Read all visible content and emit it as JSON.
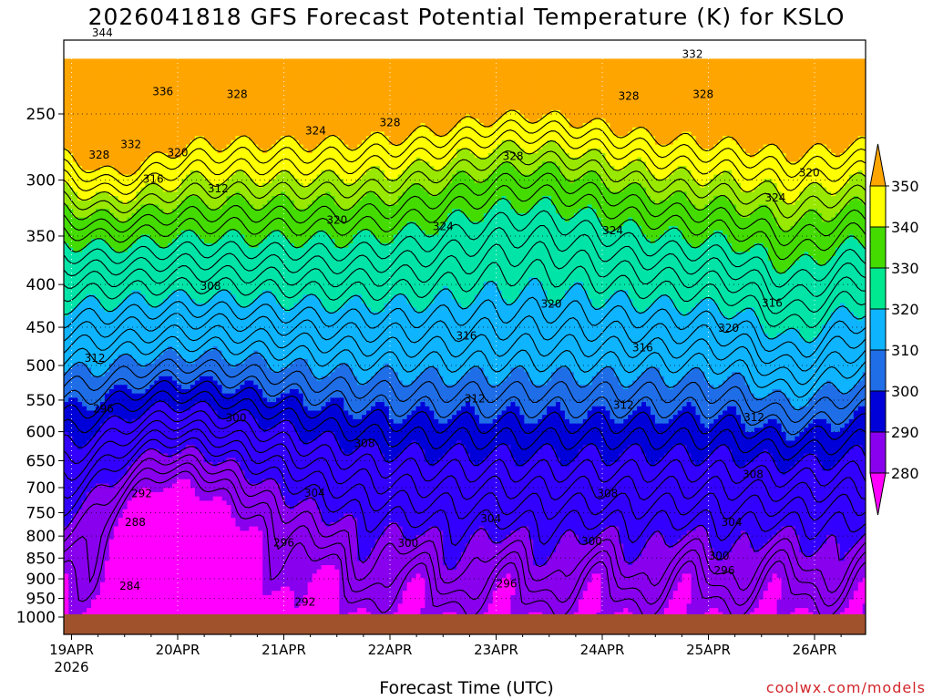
{
  "chart_data": {
    "type": "contour",
    "title": "2026041818 GFS Forecast Potential Temperature (K) for KSLO",
    "xlabel": "Forecast Time (UTC)",
    "ylabel": "",
    "x_ticks": [
      "19APR",
      "20APR",
      "21APR",
      "22APR",
      "23APR",
      "24APR",
      "25APR",
      "26APR"
    ],
    "x_year_label": "2026",
    "y_ticks": [
      250,
      300,
      350,
      400,
      450,
      500,
      550,
      600,
      650,
      700,
      750,
      800,
      850,
      900,
      950,
      1000
    ],
    "ylim": [
      1000,
      200
    ],
    "colorbar": {
      "levels": [
        280,
        290,
        300,
        310,
        320,
        330,
        340,
        350
      ],
      "colors": [
        "#ff00ff",
        "#8800ee",
        "#3300ff",
        "#0000d8",
        "#1f6ee8",
        "#0fb4ff",
        "#00e4a8",
        "#00e890",
        "#44dc00",
        "#ffff00",
        "#ffa500"
      ]
    },
    "contour_labels": [
      {
        "t": 0.29,
        "p": 200,
        "v": "344"
      },
      {
        "t": 0.86,
        "p": 235,
        "v": "336"
      },
      {
        "t": 1.56,
        "p": 237,
        "v": "328"
      },
      {
        "t": 0.26,
        "p": 280,
        "v": "328"
      },
      {
        "t": 0.56,
        "p": 272,
        "v": "332"
      },
      {
        "t": 2.3,
        "p": 262,
        "v": "324"
      },
      {
        "t": 3.0,
        "p": 256,
        "v": "328"
      },
      {
        "t": 4.16,
        "p": 281,
        "v": "328"
      },
      {
        "t": 1.0,
        "p": 278,
        "v": "320"
      },
      {
        "t": 0.77,
        "p": 299,
        "v": "316"
      },
      {
        "t": 1.38,
        "p": 307,
        "v": "312"
      },
      {
        "t": 2.5,
        "p": 335,
        "v": "320"
      },
      {
        "t": 3.5,
        "p": 341,
        "v": "324"
      },
      {
        "t": 5.1,
        "p": 345,
        "v": "324"
      },
      {
        "t": 5.25,
        "p": 238,
        "v": "328"
      },
      {
        "t": 5.95,
        "p": 237,
        "v": "328"
      },
      {
        "t": 5.85,
        "p": 212,
        "v": "332"
      },
      {
        "t": 6.63,
        "p": 315,
        "v": "324"
      },
      {
        "t": 6.95,
        "p": 294,
        "v": "320"
      },
      {
        "t": 1.31,
        "p": 402,
        "v": "308"
      },
      {
        "t": 4.52,
        "p": 422,
        "v": "320"
      },
      {
        "t": 6.6,
        "p": 421,
        "v": "316"
      },
      {
        "t": 3.72,
        "p": 461,
        "v": "316"
      },
      {
        "t": 5.38,
        "p": 476,
        "v": "316"
      },
      {
        "t": 6.19,
        "p": 451,
        "v": "320"
      },
      {
        "t": 0.22,
        "p": 490,
        "v": "312"
      },
      {
        "t": 0.3,
        "p": 563,
        "v": "296"
      },
      {
        "t": 1.55,
        "p": 578,
        "v": "300"
      },
      {
        "t": 3.8,
        "p": 548,
        "v": "312"
      },
      {
        "t": 5.2,
        "p": 558,
        "v": "312"
      },
      {
        "t": 6.43,
        "p": 577,
        "v": "312"
      },
      {
        "t": 2.76,
        "p": 620,
        "v": "308"
      },
      {
        "t": 6.42,
        "p": 675,
        "v": "308"
      },
      {
        "t": 5.05,
        "p": 712,
        "v": "308"
      },
      {
        "t": 2.29,
        "p": 711,
        "v": "304"
      },
      {
        "t": 3.95,
        "p": 762,
        "v": "304"
      },
      {
        "t": 6.22,
        "p": 770,
        "v": "304"
      },
      {
        "t": 0.66,
        "p": 712,
        "v": "292"
      },
      {
        "t": 0.6,
        "p": 770,
        "v": "288"
      },
      {
        "t": 2.0,
        "p": 815,
        "v": "296"
      },
      {
        "t": 3.17,
        "p": 816,
        "v": "300"
      },
      {
        "t": 4.9,
        "p": 812,
        "v": "300"
      },
      {
        "t": 6.1,
        "p": 845,
        "v": "300"
      },
      {
        "t": 0.55,
        "p": 918,
        "v": "284"
      },
      {
        "t": 4.1,
        "p": 912,
        "v": "296"
      },
      {
        "t": 6.15,
        "p": 880,
        "v": "296"
      },
      {
        "t": 2.2,
        "p": 960,
        "v": "292"
      }
    ]
  },
  "credit": "coolwx.com/models"
}
